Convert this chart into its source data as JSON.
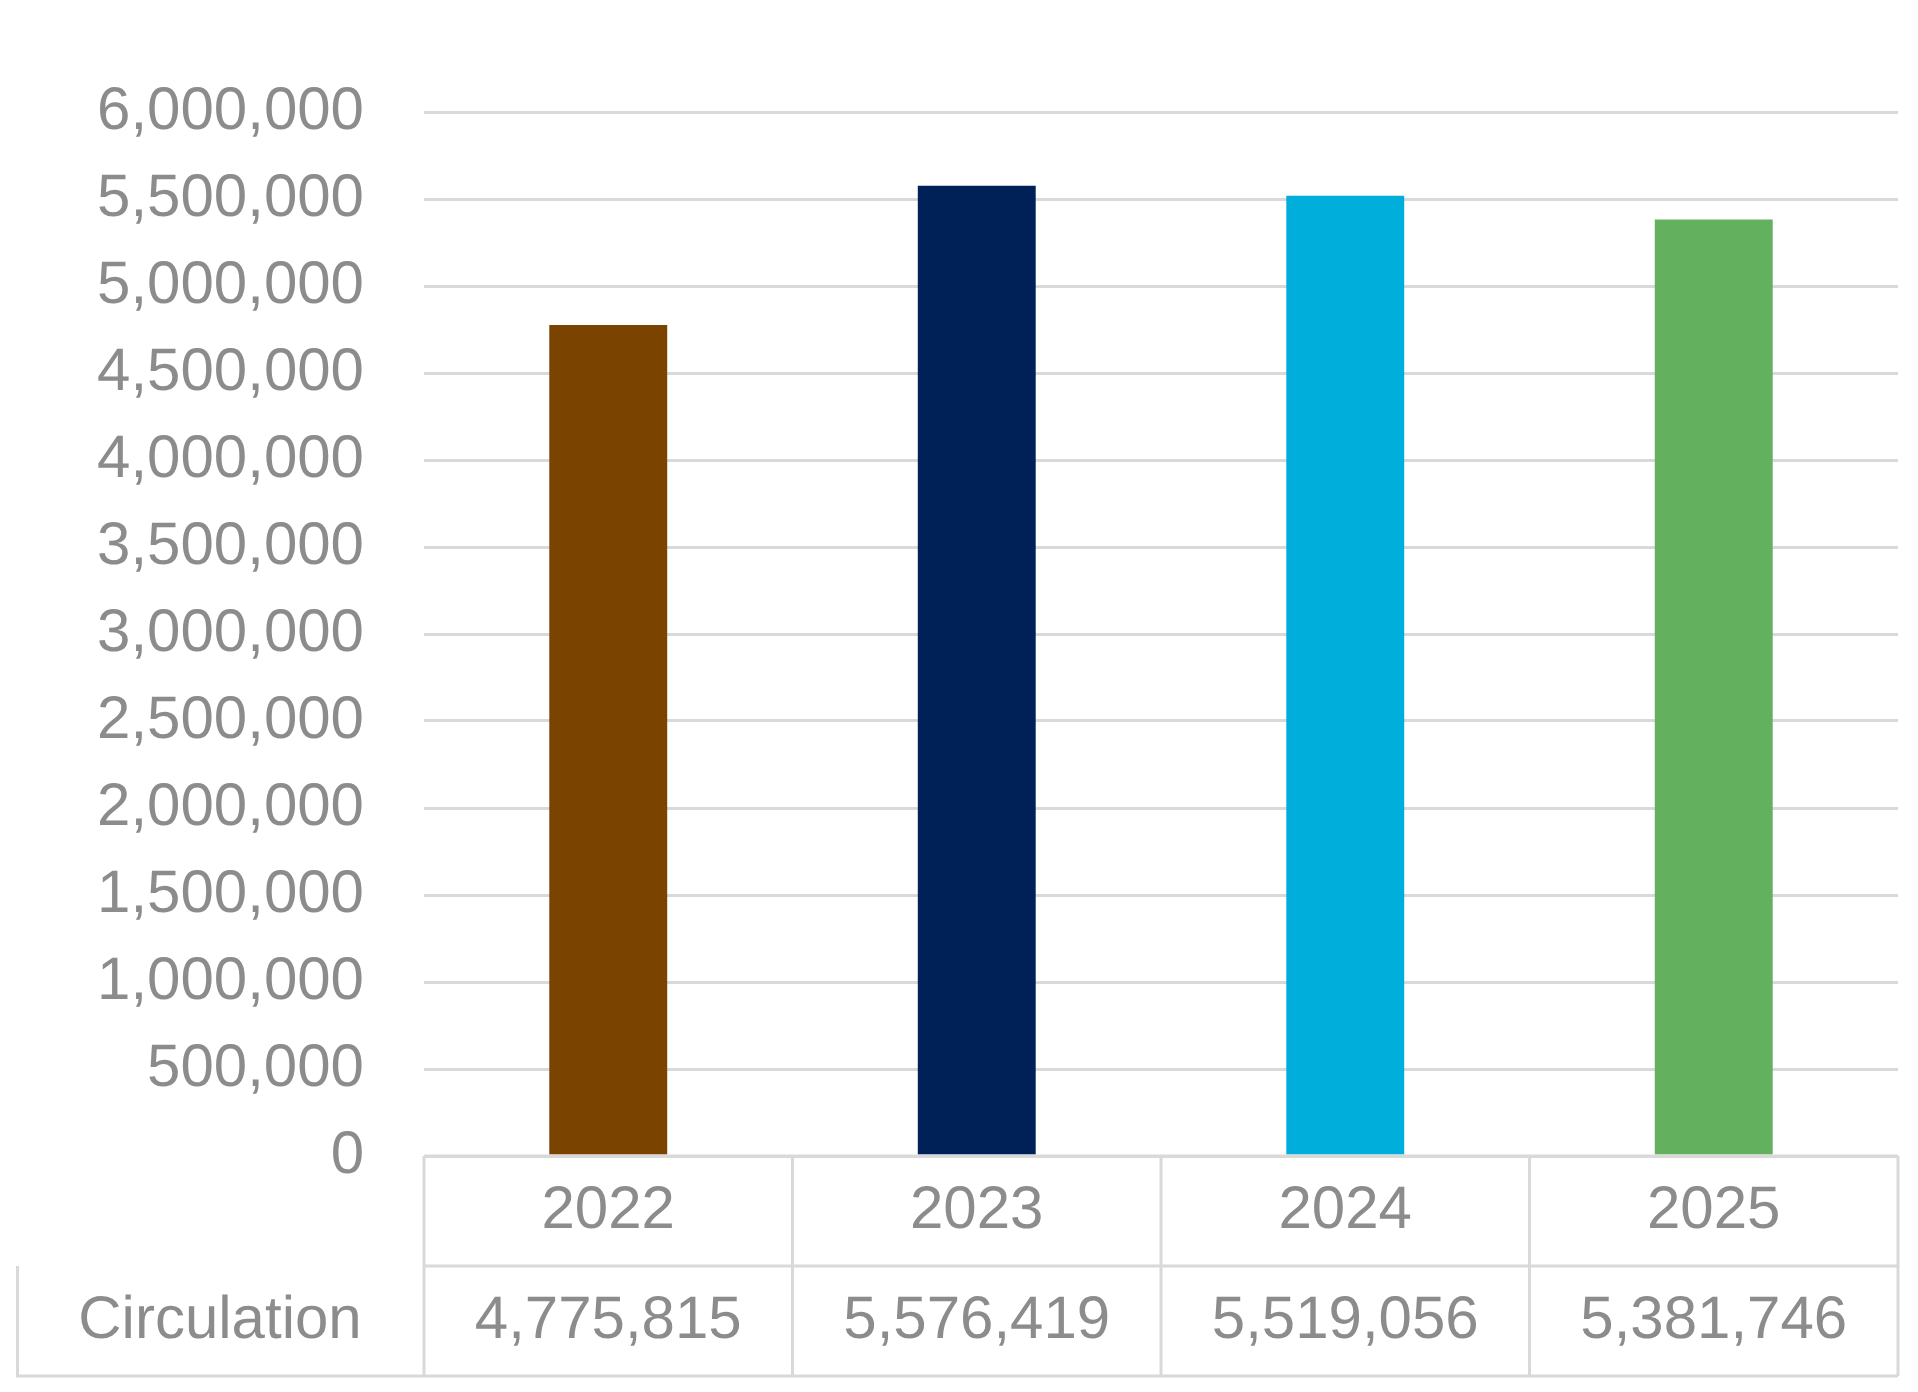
{
  "chart_data": {
    "type": "bar",
    "categories": [
      "2022",
      "2023",
      "2024",
      "2025"
    ],
    "series": [
      {
        "name": "Circulation",
        "colors": [
          "#7a4400",
          "#002157",
          "#00aedb",
          "#63b15e"
        ],
        "values": [
          4775815,
          5576419,
          5519056,
          5381746
        ],
        "value_labels": [
          "4,775,815",
          "5,576,419",
          "5,519,056",
          "5,381,746"
        ]
      }
    ],
    "ylim": [
      0,
      6000000
    ],
    "yticks": [
      {
        "value": 0,
        "label": "0"
      },
      {
        "value": 500000,
        "label": "500,000"
      },
      {
        "value": 1000000,
        "label": "1,000,000"
      },
      {
        "value": 1500000,
        "label": "1,500,000"
      },
      {
        "value": 2000000,
        "label": "2,000,000"
      },
      {
        "value": 2500000,
        "label": "2,500,000"
      },
      {
        "value": 3000000,
        "label": "3,000,000"
      },
      {
        "value": 3500000,
        "label": "3,500,000"
      },
      {
        "value": 4000000,
        "label": "4,000,000"
      },
      {
        "value": 4500000,
        "label": "4,500,000"
      },
      {
        "value": 5000000,
        "label": "5,000,000"
      },
      {
        "value": 5500000,
        "label": "5,500,000"
      },
      {
        "value": 6000000,
        "label": "6,000,000"
      }
    ],
    "grid": "y",
    "legend": false
  }
}
